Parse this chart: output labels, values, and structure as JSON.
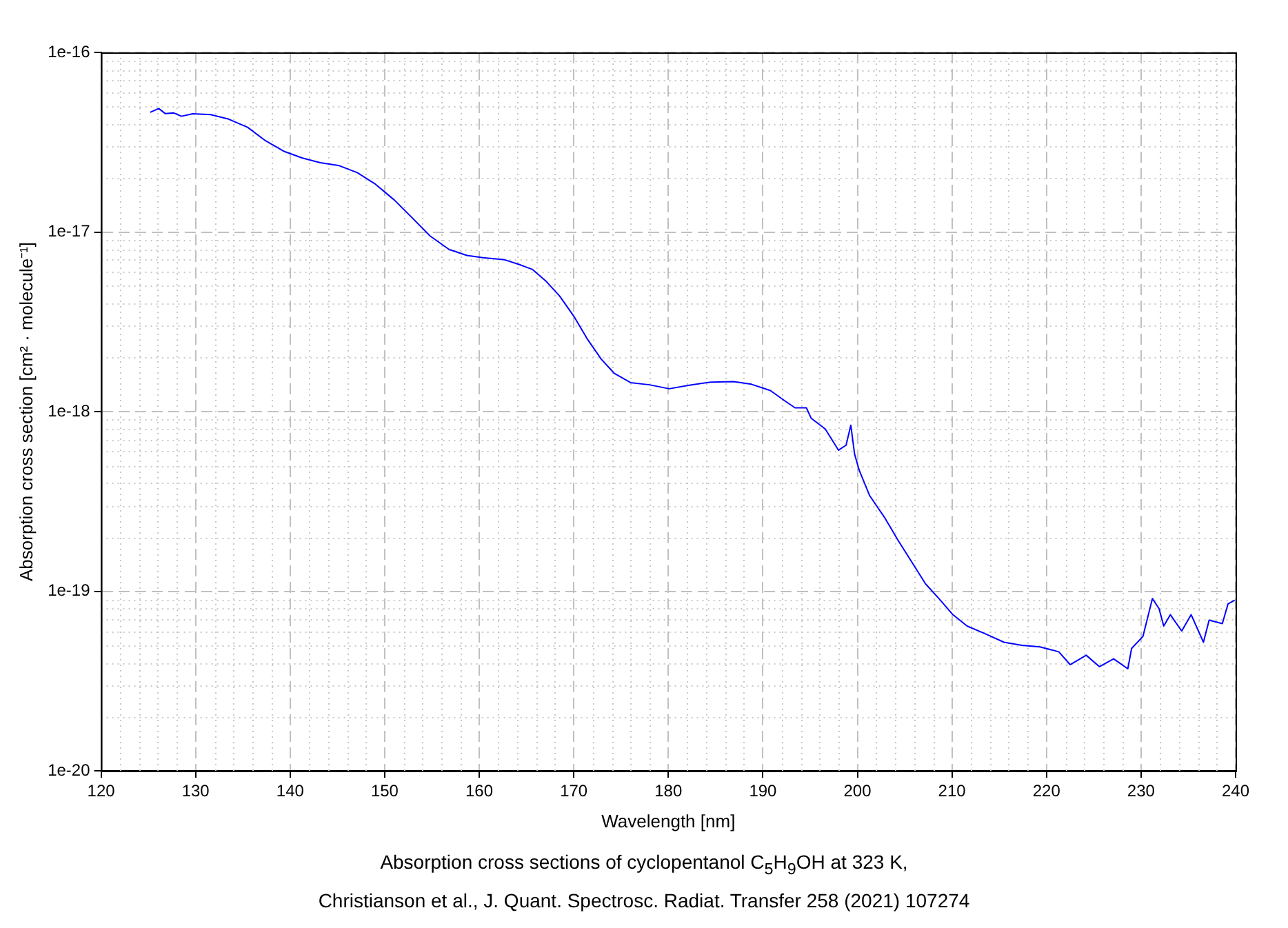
{
  "chart_data": {
    "type": "line",
    "title": "Absorption cross sections of cyclopentanol C$_{5}$H$_{9}$OH at 323 K,",
    "subtitle": "Christianson et al., J. Quant. Spectrosc. Radiat. Transfer 258 (2021) 107274",
    "xlabel": "Wavelength [nm]",
    "ylabel": "Absorption cross section [cm² · molecule⁻¹]",
    "x": [
      125.2,
      126.1,
      126.8,
      127.7,
      128.5,
      129.7,
      131.6,
      133.5,
      135.5,
      137.4,
      139.3,
      141.3,
      143.2,
      145.2,
      147.1,
      149.0,
      151.0,
      152.9,
      154.8,
      156.8,
      158.7,
      160.4,
      162.7,
      164.2,
      165.6,
      167.1,
      168.5,
      170.0,
      171.4,
      172.9,
      174.3,
      176.0,
      178.0,
      180.1,
      182.1,
      184.5,
      186.9,
      188.8,
      190.8,
      192.2,
      193.4,
      194.6,
      195.1,
      196.6,
      198.0,
      198.8,
      199.3,
      199.7,
      200.2,
      201.3,
      202.9,
      204.3,
      205.8,
      207.2,
      208.7,
      210.1,
      211.6,
      213.5,
      215.5,
      217.4,
      219.3,
      221.3,
      222.5,
      224.2,
      225.6,
      227.1,
      228.6,
      229.0,
      230.2,
      231.2,
      231.9,
      232.4,
      233.1,
      234.3,
      235.3,
      236.6,
      237.2,
      238.6,
      239.2,
      239.9
    ],
    "series": [
      {
        "color": "#0000ff",
        "values": [
          4.64e-17,
          4.87e-17,
          4.56e-17,
          4.6e-17,
          4.41e-17,
          4.55e-17,
          4.5e-17,
          4.25e-17,
          3.83e-17,
          3.22e-17,
          2.82e-17,
          2.58e-17,
          2.43e-17,
          2.34e-17,
          2.14e-17,
          1.85e-17,
          1.51e-17,
          1.2e-17,
          9.5e-18,
          8e-18,
          7.4e-18,
          7.2e-18,
          7e-18,
          6.6e-18,
          6.2e-18,
          5.3e-18,
          4.4e-18,
          3.4e-18,
          2.55e-18,
          1.96e-18,
          1.63e-18,
          1.45e-18,
          1.41e-18,
          1.34e-18,
          1.4e-18,
          1.46e-18,
          1.47e-18,
          1.42e-18,
          1.31e-18,
          1.16e-18,
          1.05e-18,
          1.05e-18,
          9.2e-19,
          8e-19,
          6.1e-19,
          6.5e-19,
          8.4e-19,
          5.8e-19,
          4.7e-19,
          3.4e-19,
          2.56e-19,
          1.92e-19,
          1.44e-19,
          1.1e-19,
          9e-20,
          7.4e-20,
          6.4e-20,
          5.8e-20,
          5.2e-20,
          5e-20,
          4.9e-20,
          4.6e-20,
          3.9e-20,
          4.4e-20,
          3.8e-20,
          4.2e-20,
          3.7e-20,
          4.8e-20,
          5.6e-20,
          9.1e-20,
          8e-20,
          6.4e-20,
          7.4e-20,
          6e-20,
          7.4e-20,
          5.2e-20,
          6.9e-20,
          6.6e-20,
          8.5e-20,
          8.9e-20
        ]
      }
    ],
    "xlim": [
      120,
      240
    ],
    "xticks": [
      120,
      130,
      140,
      150,
      160,
      170,
      180,
      190,
      200,
      210,
      220,
      230,
      240
    ],
    "ylim": [
      1e-20,
      1e-16
    ],
    "yticks": [
      {
        "value": 1e-20,
        "label": "1e-20"
      },
      {
        "value": 1e-19,
        "label": "1e-19"
      },
      {
        "value": 1e-18,
        "label": "1e-18"
      },
      {
        "value": 1e-17,
        "label": "1e-17"
      },
      {
        "value": 1e-16,
        "label": "1e-16"
      }
    ],
    "log": "y",
    "grid": true,
    "legend": false,
    "marker": "none",
    "line_style": "solid"
  }
}
